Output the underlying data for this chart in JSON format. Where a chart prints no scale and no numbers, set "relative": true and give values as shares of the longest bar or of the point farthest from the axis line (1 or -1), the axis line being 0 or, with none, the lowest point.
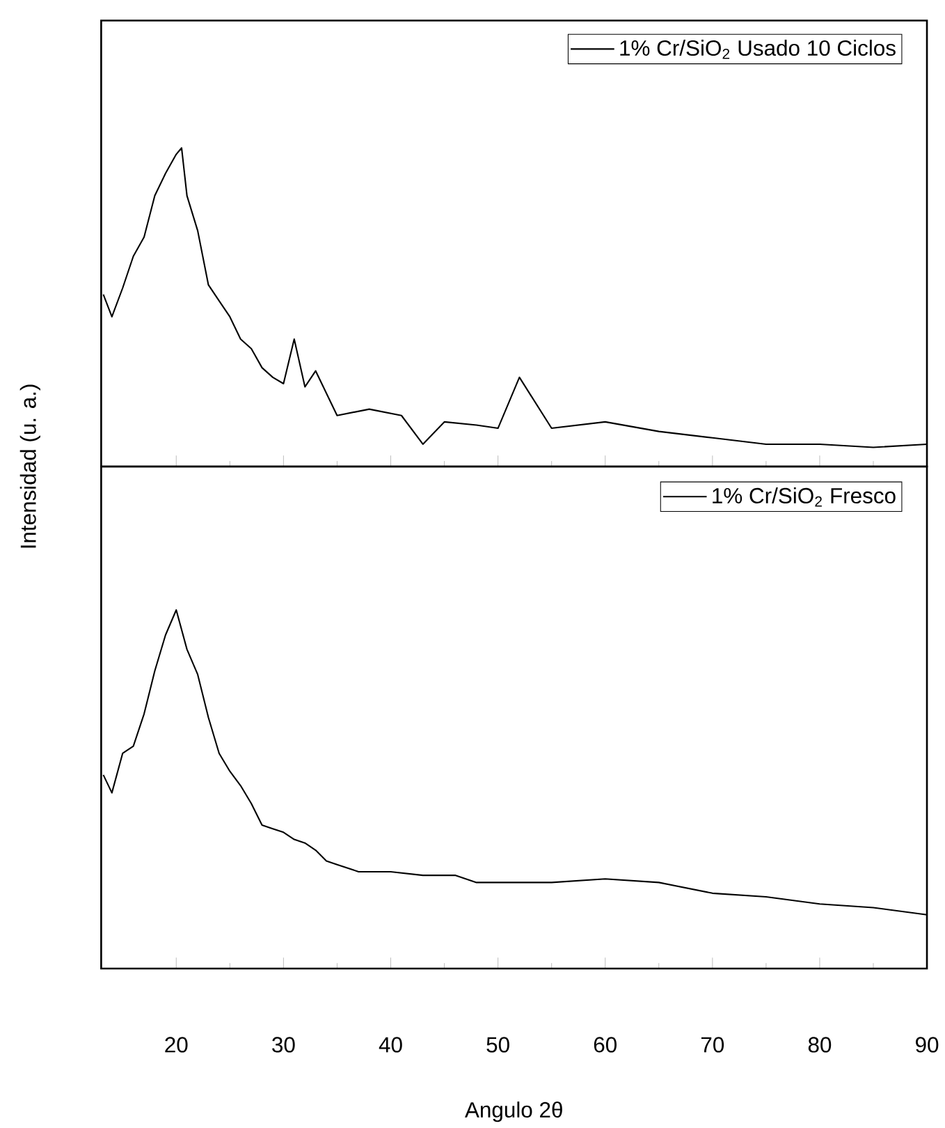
{
  "chart_data": [
    {
      "type": "line",
      "ylabel": "Intensidad (u. a.)",
      "relative": true,
      "xlim": [
        13,
        90
      ],
      "xticks": [
        20,
        30,
        40,
        50,
        60,
        70,
        80,
        90
      ],
      "tick_labels": false,
      "legend": "top right",
      "x": [
        13.2,
        14,
        15,
        16,
        17,
        18,
        19,
        20,
        20.5,
        21,
        22,
        23,
        24,
        25,
        26,
        27,
        28,
        29,
        30,
        31,
        32,
        33,
        35,
        38,
        41,
        43,
        45,
        48,
        50,
        52,
        55,
        60,
        65,
        70,
        75,
        80,
        85,
        90
      ],
      "series": [
        {
          "name": "1% Cr/SiO$_{2}$ Usado 10 Ciclos",
          "color": "#000000",
          "values": [
            0.54,
            0.47,
            0.56,
            0.66,
            0.72,
            0.85,
            0.92,
            0.98,
            1.0,
            0.85,
            0.74,
            0.57,
            0.52,
            0.47,
            0.4,
            0.37,
            0.31,
            0.28,
            0.26,
            0.4,
            0.25,
            0.3,
            0.16,
            0.18,
            0.16,
            0.07,
            0.14,
            0.13,
            0.12,
            0.28,
            0.12,
            0.14,
            0.11,
            0.09,
            0.07,
            0.07,
            0.06,
            0.07
          ]
        }
      ]
    },
    {
      "type": "line",
      "xlabel": "Angulo 2θ",
      "relative": true,
      "xlim": [
        13,
        90
      ],
      "xticks": [
        20,
        30,
        40,
        50,
        60,
        70,
        80,
        90
      ],
      "tick_labels": "x",
      "legend": "top right",
      "x": [
        13.2,
        14,
        15,
        16,
        17,
        18,
        19,
        20,
        21,
        22,
        23,
        24,
        25,
        26,
        27,
        28,
        29,
        30,
        31,
        32,
        33,
        34,
        35,
        37,
        40,
        43,
        46,
        48,
        50,
        55,
        60,
        65,
        70,
        75,
        80,
        85,
        90
      ],
      "series": [
        {
          "name": "1% Cr/SiO$_{2}$ Fresco",
          "color": "#000000",
          "values": [
            0.54,
            0.49,
            0.6,
            0.62,
            0.71,
            0.83,
            0.93,
            1.0,
            0.89,
            0.82,
            0.7,
            0.6,
            0.55,
            0.51,
            0.46,
            0.4,
            0.39,
            0.38,
            0.36,
            0.35,
            0.33,
            0.3,
            0.29,
            0.27,
            0.27,
            0.26,
            0.26,
            0.24,
            0.24,
            0.24,
            0.25,
            0.24,
            0.21,
            0.2,
            0.18,
            0.17,
            0.15
          ]
        }
      ]
    }
  ]
}
